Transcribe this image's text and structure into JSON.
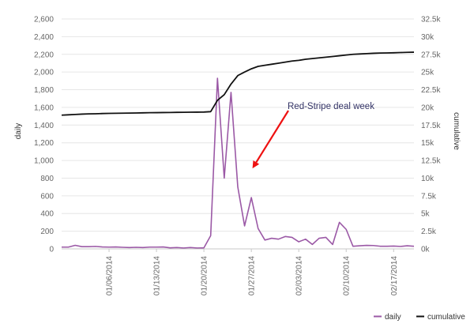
{
  "chart_data": {
    "type": "line",
    "x_dates": [
      "2013-12-30",
      "2013-12-31",
      "2014-01-01",
      "2014-01-02",
      "2014-01-03",
      "2014-01-04",
      "2014-01-05",
      "2014-01-06",
      "2014-01-07",
      "2014-01-08",
      "2014-01-09",
      "2014-01-10",
      "2014-01-11",
      "2014-01-12",
      "2014-01-13",
      "2014-01-14",
      "2014-01-15",
      "2014-01-16",
      "2014-01-17",
      "2014-01-18",
      "2014-01-19",
      "2014-01-20",
      "2014-01-21",
      "2014-01-22",
      "2014-01-23",
      "2014-01-24",
      "2014-01-25",
      "2014-01-26",
      "2014-01-27",
      "2014-01-28",
      "2014-01-29",
      "2014-01-30",
      "2014-01-31",
      "2014-02-01",
      "2014-02-02",
      "2014-02-03",
      "2014-02-04",
      "2014-02-05",
      "2014-02-06",
      "2014-02-07",
      "2014-02-08",
      "2014-02-09",
      "2014-02-10",
      "2014-02-11",
      "2014-02-12",
      "2014-02-13",
      "2014-02-14",
      "2014-02-15",
      "2014-02-16",
      "2014-02-17",
      "2014-02-18",
      "2014-02-19",
      "2014-02-20"
    ],
    "series": [
      {
        "name": "daily",
        "axis": "left",
        "color": "#9b59a6",
        "values": [
          20,
          20,
          40,
          25,
          25,
          28,
          22,
          20,
          22,
          18,
          15,
          18,
          15,
          20,
          20,
          22,
          12,
          15,
          10,
          15,
          10,
          12,
          150,
          1930,
          800,
          1770,
          700,
          260,
          580,
          230,
          100,
          120,
          110,
          140,
          130,
          80,
          110,
          50,
          120,
          130,
          50,
          300,
          220,
          30,
          35,
          40,
          38,
          30,
          30,
          32,
          28,
          35,
          30
        ]
      },
      {
        "name": "cumulative",
        "axis": "right",
        "color": "#111111",
        "values": [
          18900,
          18950,
          19000,
          19050,
          19080,
          19100,
          19130,
          19150,
          19170,
          19180,
          19200,
          19210,
          19230,
          19250,
          19260,
          19270,
          19280,
          19300,
          19310,
          19320,
          19330,
          19340,
          19400,
          21000,
          21800,
          23300,
          24500,
          25000,
          25450,
          25800,
          25950,
          26100,
          26250,
          26400,
          26550,
          26650,
          26800,
          26900,
          27000,
          27100,
          27200,
          27300,
          27400,
          27500,
          27550,
          27600,
          27650,
          27680,
          27700,
          27720,
          27750,
          27780,
          27800
        ]
      }
    ],
    "y_left": {
      "label": "daily",
      "min": 0,
      "max": 2600,
      "ticks": [
        "0",
        "200",
        "400",
        "600",
        "800",
        "1,000",
        "1,200",
        "1,400",
        "1,600",
        "1,800",
        "2,000",
        "2,200",
        "2,400",
        "2,600"
      ]
    },
    "y_right": {
      "label": "cumulative",
      "min": 0,
      "max": 32500,
      "ticks": [
        "0k",
        "2.5k",
        "5k",
        "7.5k",
        "10k",
        "12.5k",
        "15k",
        "17.5k",
        "20k",
        "22.5k",
        "25k",
        "27.5k",
        "30k",
        "32.5k"
      ]
    },
    "x_ticks": [
      {
        "date": "2014-01-06",
        "label": "01/06/2014"
      },
      {
        "date": "2014-01-13",
        "label": "01/13/2014"
      },
      {
        "date": "2014-01-20",
        "label": "01/20/2014"
      },
      {
        "date": "2014-01-27",
        "label": "01/27/2014"
      },
      {
        "date": "2014-02-03",
        "label": "02/03/2014"
      },
      {
        "date": "2014-02-10",
        "label": "02/10/2014"
      },
      {
        "date": "2014-02-17",
        "label": "02/17/2014"
      }
    ],
    "annotation": {
      "text": "Red-Stripe deal week",
      "color": "#ee1111",
      "target_date": "2014-01-26",
      "target_value": 1000
    },
    "legend": {
      "placement": "bottom-right",
      "items": [
        "daily",
        "cumulative"
      ]
    },
    "grid": true
  }
}
